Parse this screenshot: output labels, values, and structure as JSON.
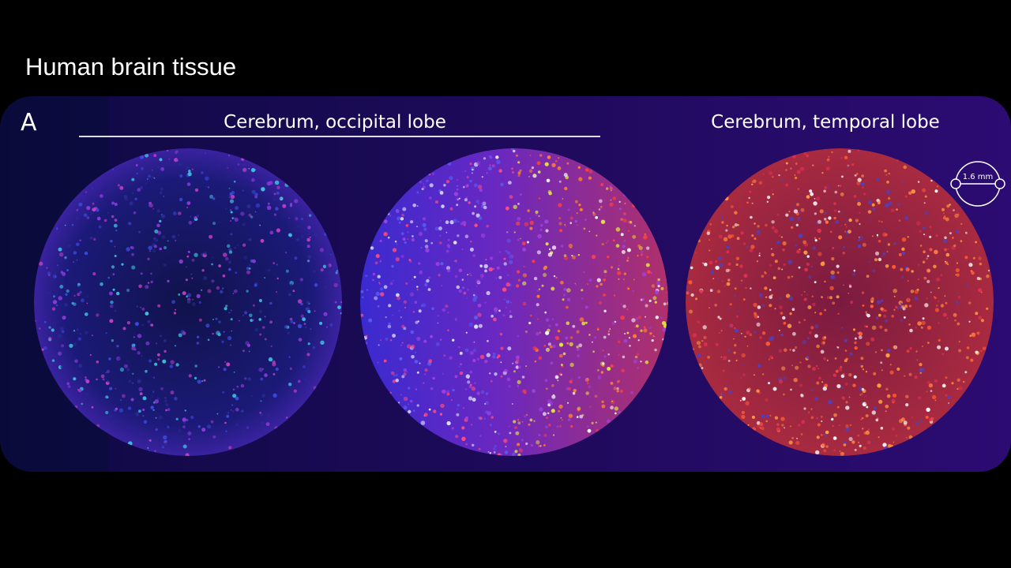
{
  "header": {
    "title": "Human brain tissue"
  },
  "panel": {
    "label": "A",
    "groups": [
      {
        "label": "Cerebrum, occipital lobe"
      },
      {
        "label": "Cerebrum, temporal lobe"
      }
    ],
    "scale_bar": {
      "label": "1.6 mm"
    }
  }
}
